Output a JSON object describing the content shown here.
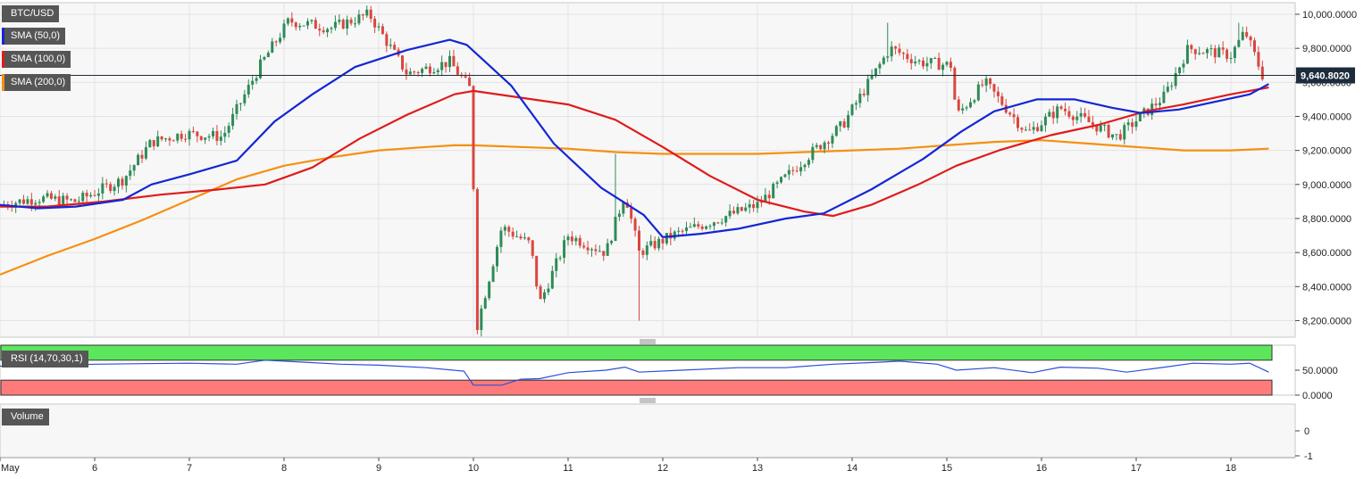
{
  "instrument": "BTC/USD",
  "price_label": "9,640.8020",
  "indicators": {
    "sma50": {
      "label": "SMA (50,0)",
      "color": "#1326d6"
    },
    "sma100": {
      "label": "SMA (100,0)",
      "color": "#e01b1b"
    },
    "sma200": {
      "label": "SMA (200,0)",
      "color": "#f5900f"
    }
  },
  "rsi_label": "RSI (14,70,30,1)",
  "volume_label": "Volume",
  "colors": {
    "up": "#2e8b57",
    "down": "#d9473f",
    "rsi": "#2b4fd8",
    "overbought": "#5ce65c",
    "oversold": "#ff7b7b"
  },
  "chart_data": [
    {
      "type": "line",
      "title": "BTC/USD",
      "x_ticks": [
        "May",
        "6",
        "7",
        "8",
        "9",
        "10",
        "11",
        "12",
        "13",
        "14",
        "15",
        "16",
        "17",
        "18"
      ],
      "y_ticks": [
        "8,200.0000",
        "8,400.0000",
        "8,600.0000",
        "8,800.0000",
        "9,000.0000",
        "9,200.0000",
        "9,400.0000",
        "9,600.0000",
        "9,800.0000",
        "10,000.0000"
      ],
      "ylim": [
        8100,
        10060
      ],
      "current_price": 9640.802,
      "price_path": [
        [
          5.0,
          8880
        ],
        [
          5.4,
          8920
        ],
        [
          5.8,
          8900
        ],
        [
          6.3,
          9030
        ],
        [
          6.6,
          9250
        ],
        [
          6.95,
          9300
        ],
        [
          7.35,
          9280
        ],
        [
          7.75,
          9700
        ],
        [
          8.05,
          9960
        ],
        [
          8.5,
          9920
        ],
        [
          8.9,
          10000
        ],
        [
          9.3,
          9650
        ],
        [
          9.75,
          9720
        ],
        [
          9.98,
          9550
        ],
        [
          10.03,
          8150
        ],
        [
          10.3,
          8750
        ],
        [
          10.6,
          8650
        ],
        [
          10.7,
          8300
        ],
        [
          11.0,
          8700
        ],
        [
          11.4,
          8600
        ],
        [
          11.6,
          8950
        ],
        [
          11.75,
          8600
        ],
        [
          12.1,
          8700
        ],
        [
          12.6,
          8800
        ],
        [
          13.0,
          8880
        ],
        [
          13.5,
          9150
        ],
        [
          13.9,
          9350
        ],
        [
          14.4,
          9800
        ],
        [
          14.7,
          9720
        ],
        [
          15.05,
          9700
        ],
        [
          15.1,
          9400
        ],
        [
          15.4,
          9600
        ],
        [
          15.85,
          9300
        ],
        [
          16.2,
          9450
        ],
        [
          16.8,
          9280
        ],
        [
          17.3,
          9520
        ],
        [
          17.55,
          9800
        ],
        [
          18.0,
          9760
        ],
        [
          18.15,
          9900
        ],
        [
          18.35,
          9620
        ]
      ],
      "series": [
        {
          "name": "SMA (50,0)",
          "points": [
            [
              5.0,
              8880
            ],
            [
              5.4,
              8860
            ],
            [
              5.8,
              8870
            ],
            [
              6.3,
              8910
            ],
            [
              6.6,
              9000
            ],
            [
              7.0,
              9060
            ],
            [
              7.5,
              9140
            ],
            [
              7.9,
              9370
            ],
            [
              8.3,
              9530
            ],
            [
              8.75,
              9690
            ],
            [
              9.3,
              9790
            ],
            [
              9.75,
              9850
            ],
            [
              9.93,
              9820
            ],
            [
              10.4,
              9580
            ],
            [
              10.85,
              9240
            ],
            [
              11.35,
              8980
            ],
            [
              11.8,
              8820
            ],
            [
              12.0,
              8690
            ],
            [
              12.4,
              8710
            ],
            [
              12.8,
              8740
            ],
            [
              13.3,
              8800
            ],
            [
              13.7,
              8830
            ],
            [
              14.2,
              8970
            ],
            [
              14.75,
              9150
            ],
            [
              15.15,
              9310
            ],
            [
              15.5,
              9430
            ],
            [
              15.95,
              9500
            ],
            [
              16.35,
              9500
            ],
            [
              16.75,
              9450
            ],
            [
              17.05,
              9420
            ],
            [
              17.45,
              9440
            ],
            [
              18.2,
              9530
            ],
            [
              18.4,
              9590
            ]
          ]
        },
        {
          "name": "SMA (100,0)",
          "points": [
            [
              5.0,
              8870
            ],
            [
              5.5,
              8870
            ],
            [
              6.1,
              8900
            ],
            [
              6.7,
              8940
            ],
            [
              7.3,
              8970
            ],
            [
              7.8,
              9000
            ],
            [
              8.3,
              9100
            ],
            [
              8.8,
              9270
            ],
            [
              9.3,
              9410
            ],
            [
              9.8,
              9530
            ],
            [
              10.0,
              9550
            ],
            [
              10.5,
              9510
            ],
            [
              11.0,
              9470
            ],
            [
              11.5,
              9380
            ],
            [
              12.0,
              9220
            ],
            [
              12.5,
              9050
            ],
            [
              13.0,
              8910
            ],
            [
              13.5,
              8840
            ],
            [
              13.8,
              8815
            ],
            [
              14.2,
              8880
            ],
            [
              14.7,
              9000
            ],
            [
              15.1,
              9110
            ],
            [
              15.55,
              9200
            ],
            [
              16.1,
              9290
            ],
            [
              16.6,
              9350
            ],
            [
              17.1,
              9430
            ],
            [
              17.5,
              9470
            ],
            [
              18.0,
              9530
            ],
            [
              18.4,
              9570
            ]
          ]
        },
        {
          "name": "SMA (200,0)",
          "points": [
            [
              5.0,
              8470
            ],
            [
              5.5,
              8580
            ],
            [
              6.0,
              8680
            ],
            [
              6.5,
              8790
            ],
            [
              7.0,
              8910
            ],
            [
              7.5,
              9030
            ],
            [
              8.0,
              9110
            ],
            [
              8.5,
              9160
            ],
            [
              9.0,
              9200
            ],
            [
              9.5,
              9220
            ],
            [
              9.8,
              9230
            ],
            [
              10.0,
              9230
            ],
            [
              10.5,
              9220
            ],
            [
              11.0,
              9210
            ],
            [
              11.5,
              9190
            ],
            [
              12.0,
              9180
            ],
            [
              12.5,
              9180
            ],
            [
              13.0,
              9180
            ],
            [
              13.5,
              9190
            ],
            [
              14.0,
              9200
            ],
            [
              14.5,
              9210
            ],
            [
              15.0,
              9230
            ],
            [
              15.5,
              9250
            ],
            [
              16.0,
              9260
            ],
            [
              16.5,
              9240
            ],
            [
              17.0,
              9220
            ],
            [
              17.5,
              9200
            ],
            [
              18.0,
              9200
            ],
            [
              18.4,
              9210
            ]
          ]
        }
      ]
    },
    {
      "type": "line",
      "title": "RSI (14,70,30,1)",
      "y_ticks": [
        "50.0000",
        "0.0000"
      ],
      "ylim": [
        0,
        100
      ],
      "zones": [
        {
          "label": "overbought",
          "from": 70,
          "to": 100
        },
        {
          "label": "oversold",
          "from": 0,
          "to": 30
        }
      ],
      "points": [
        [
          5.0,
          58
        ],
        [
          5.5,
          58
        ],
        [
          6.0,
          62
        ],
        [
          6.5,
          63
        ],
        [
          7.0,
          64
        ],
        [
          7.5,
          62
        ],
        [
          7.8,
          70
        ],
        [
          8.2,
          66
        ],
        [
          8.6,
          62
        ],
        [
          9.0,
          60
        ],
        [
          9.5,
          55
        ],
        [
          9.9,
          48
        ],
        [
          10.0,
          20
        ],
        [
          10.3,
          20
        ],
        [
          10.5,
          32
        ],
        [
          10.7,
          33
        ],
        [
          11.0,
          45
        ],
        [
          11.4,
          50
        ],
        [
          11.6,
          56
        ],
        [
          11.75,
          46
        ],
        [
          12.2,
          50
        ],
        [
          12.8,
          55
        ],
        [
          13.3,
          55
        ],
        [
          13.8,
          62
        ],
        [
          14.3,
          66
        ],
        [
          14.5,
          68
        ],
        [
          14.9,
          62
        ],
        [
          15.1,
          50
        ],
        [
          15.5,
          55
        ],
        [
          15.9,
          45
        ],
        [
          16.2,
          56
        ],
        [
          16.6,
          54
        ],
        [
          16.9,
          46
        ],
        [
          17.3,
          56
        ],
        [
          17.6,
          64
        ],
        [
          18.0,
          62
        ],
        [
          18.2,
          64
        ],
        [
          18.4,
          46
        ]
      ]
    },
    {
      "type": "bar",
      "title": "Volume",
      "y_ticks": [
        "0",
        "-1"
      ],
      "values": []
    }
  ]
}
